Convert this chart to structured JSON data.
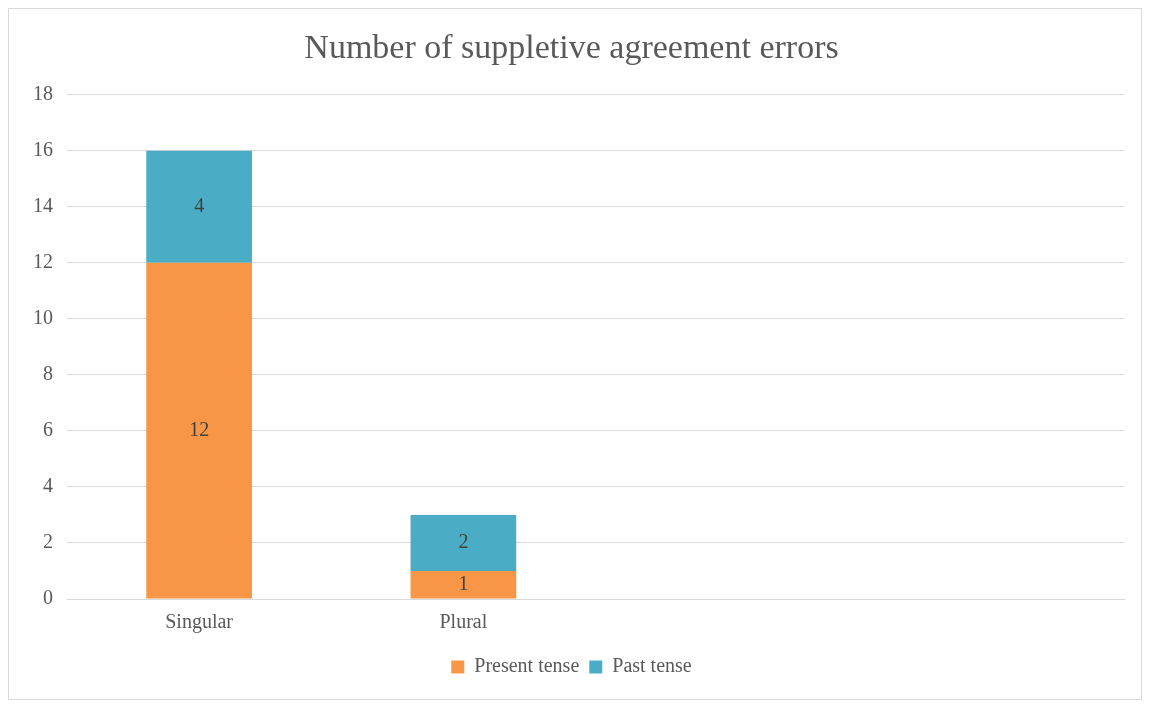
{
  "chart_data": {
    "type": "bar",
    "title": "Number of suppletive agreement errors",
    "categories": [
      "Singular",
      "Plural",
      null,
      null
    ],
    "stacked": true,
    "series": [
      {
        "name": "Present tense",
        "color": "#f79646",
        "values": [
          12,
          1,
          null,
          null
        ]
      },
      {
        "name": "Past tense",
        "color": "#4bacc6",
        "values": [
          4,
          2,
          null,
          null
        ]
      }
    ],
    "ylim": [
      0,
      18
    ],
    "yticks": [
      0,
      2,
      4,
      6,
      8,
      10,
      12,
      14,
      16,
      18
    ],
    "grid": "y",
    "legend": "bottom",
    "data_labels": true
  }
}
